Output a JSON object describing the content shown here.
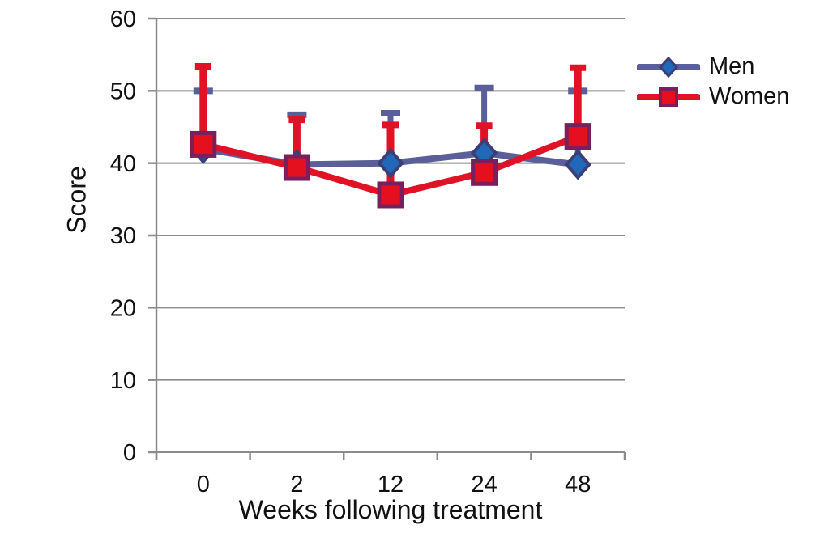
{
  "chart_data": {
    "type": "line",
    "title": "",
    "xlabel": "Weeks following treatment",
    "ylabel": "Score",
    "categories": [
      "0",
      "2",
      "12",
      "24",
      "48"
    ],
    "ylim": [
      0,
      60
    ],
    "yticks": [
      0,
      10,
      20,
      30,
      40,
      50,
      60
    ],
    "grid": true,
    "legend_position": "top-right",
    "error_bars": "plus-direction-only",
    "series": [
      {
        "name": "Men",
        "marker": "diamond",
        "values": [
          42.0,
          39.8,
          40.0,
          41.4,
          39.8
        ],
        "error_bar_top": [
          50.0,
          46.7,
          46.9,
          50.4,
          50.0
        ],
        "line_color": "#5A5F99",
        "marker_fill": "#2268B8",
        "marker_border": "#3B3F77"
      },
      {
        "name": "Women",
        "marker": "square",
        "values": [
          42.6,
          39.4,
          35.6,
          38.7,
          43.7
        ],
        "error_bar_top": [
          53.4,
          46.0,
          45.3,
          45.2,
          53.2
        ],
        "line_color": "#E01226",
        "marker_fill": "#E5101F",
        "marker_border": "#7A1F5C"
      }
    ],
    "colors": {
      "grid": "#8C8C8C",
      "axis": "#8C8C8C",
      "text": "#111111",
      "background": "#FFFFFF"
    }
  }
}
